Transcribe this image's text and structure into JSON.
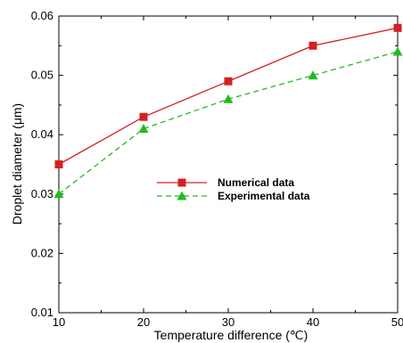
{
  "chart_data": {
    "type": "line",
    "xlabel": "Temperature difference (℃)",
    "ylabel": "Droplet diameter  (μm)",
    "xlim": [
      10,
      50
    ],
    "ylim": [
      0.01,
      0.06
    ],
    "x_ticks": [
      "10",
      "20",
      "30",
      "40",
      "50"
    ],
    "y_ticks": [
      "0.01",
      "0.02",
      "0.03",
      "0.04",
      "0.05",
      "0.06"
    ],
    "grid": false,
    "legend_position": "center",
    "x": [
      10,
      20,
      30,
      40,
      50
    ],
    "series": [
      {
        "name": "Numerical data",
        "values": [
          0.035,
          0.043,
          0.049,
          0.055,
          0.058
        ],
        "color": "#d42020",
        "line_style": "solid",
        "marker": "square"
      },
      {
        "name": "Experimental data",
        "values": [
          0.03,
          0.041,
          0.046,
          0.05,
          0.054
        ],
        "color": "#22bb22",
        "line_style": "dashed",
        "marker": "triangle"
      }
    ]
  }
}
